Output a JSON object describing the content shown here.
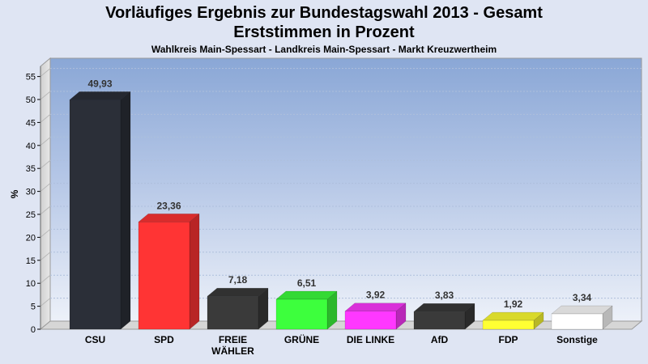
{
  "chart_data": {
    "type": "bar",
    "title": "Vorläufiges Ergebnis zur Bundestagswahl 2013 - Gesamt",
    "subtitle_line": "Erststimmen in Prozent",
    "subtitle": "Wahlkreis Main-Spessart - Landkreis Main-Spessart - Markt Kreuzwertheim",
    "ylabel": "%",
    "ylim": [
      0,
      57
    ],
    "yticks": [
      0,
      5,
      10,
      15,
      20,
      25,
      30,
      35,
      40,
      45,
      50,
      55
    ],
    "categories": [
      [
        "CSU"
      ],
      [
        "SPD"
      ],
      [
        "FREIE",
        "WÄHLER"
      ],
      [
        "GRÜNE"
      ],
      [
        "DIE LINKE"
      ],
      [
        "AfD"
      ],
      [
        "FDP"
      ],
      [
        "Sonstige"
      ]
    ],
    "values": [
      49.93,
      23.36,
      7.18,
      6.51,
      3.92,
      3.83,
      1.92,
      3.34
    ],
    "value_labels": [
      "49,93",
      "23,36",
      "7,18",
      "6,51",
      "3,92",
      "3,83",
      "1,92",
      "3,34"
    ],
    "colors": [
      "#2b2f38",
      "#ff3434",
      "#3a3a3a",
      "#3dff3d",
      "#ff38ff",
      "#3a3a3a",
      "#ffff33",
      "#ffffff"
    ],
    "grid": true,
    "legend": "none"
  }
}
